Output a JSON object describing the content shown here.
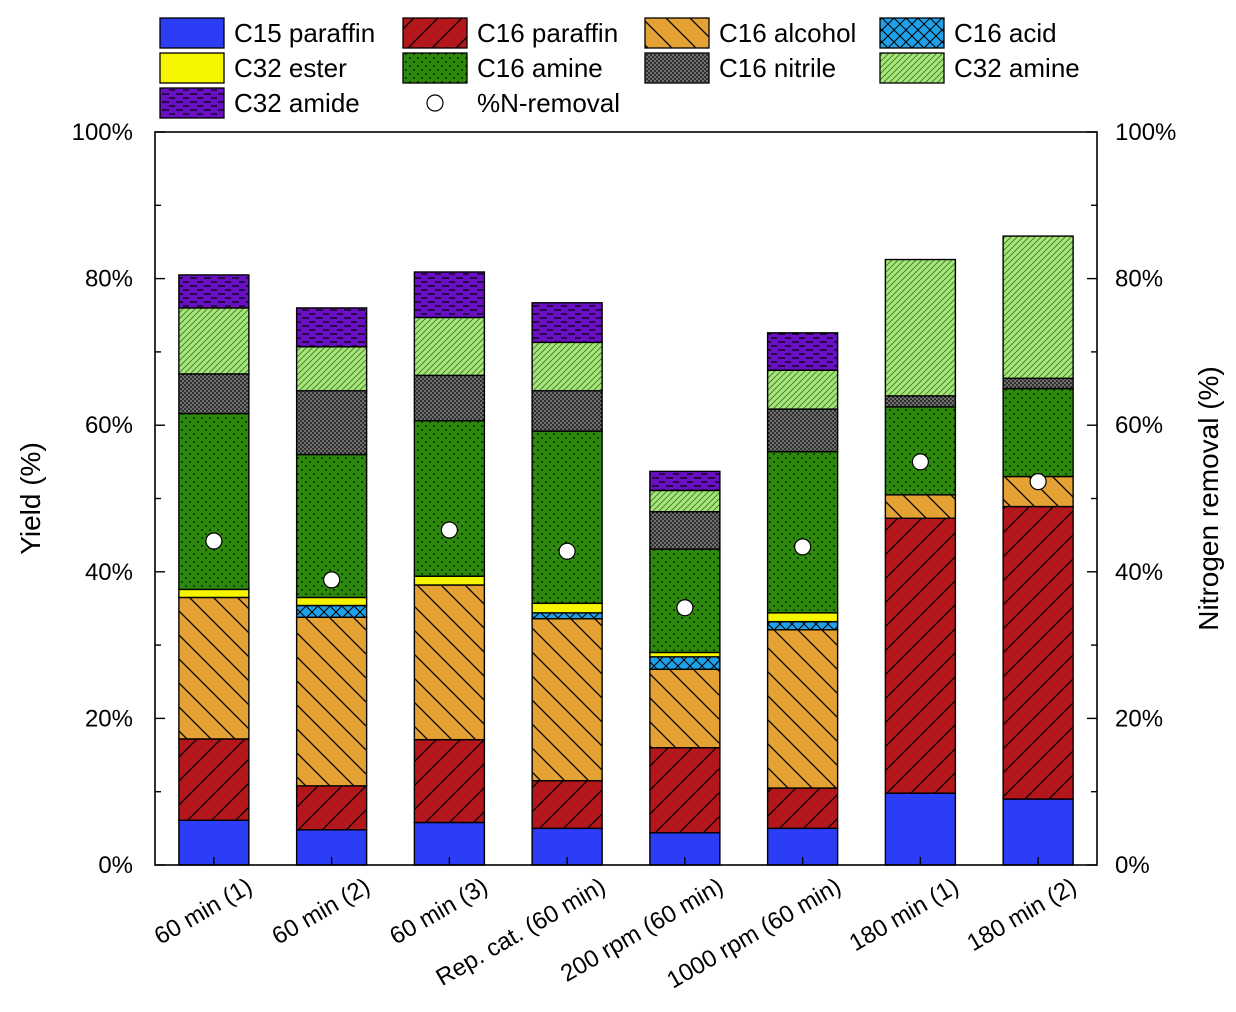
{
  "chart_data": {
    "type": "bar",
    "stacked": true,
    "categories": [
      "60 min (1)",
      "60 min (2)",
      "60 min (3)",
      "Rep. cat. (60 min)",
      "200 rpm (60 min)",
      "1000 rpm (60 min)",
      "180 min (1)",
      "180 min (2)"
    ],
    "ylabel": "Yield (%)",
    "y2label": "Nitrogen removal (%)",
    "ylim": [
      0,
      100
    ],
    "y2lim": [
      0,
      100
    ],
    "yticks": [
      "0%",
      "20%",
      "40%",
      "60%",
      "80%",
      "100%"
    ],
    "y2ticks": [
      "0%",
      "20%",
      "40%",
      "60%",
      "80%",
      "100%"
    ],
    "legend_position": "top",
    "series": [
      {
        "name": "C15 paraffin",
        "color": "#2b3df5",
        "pattern": "solid",
        "values": [
          6.1,
          4.8,
          5.8,
          5.0,
          4.4,
          5.0,
          9.8,
          9.0
        ]
      },
      {
        "name": "C16 paraffin",
        "color": "#b3171c",
        "pattern": "diag-fwd",
        "values": [
          11.1,
          6.0,
          11.3,
          6.5,
          11.6,
          5.5,
          37.5,
          39.9
        ]
      },
      {
        "name": "C16 alcohol",
        "color": "#e5a234",
        "pattern": "diag-back",
        "values": [
          19.3,
          23.0,
          21.1,
          22.1,
          10.7,
          21.6,
          3.2,
          4.1
        ]
      },
      {
        "name": "C16 acid",
        "color": "#1fa0e8",
        "pattern": "crosshatch",
        "values": [
          0.0,
          1.6,
          0.0,
          0.8,
          1.7,
          1.1,
          0.0,
          0.0
        ]
      },
      {
        "name": "C32 ester",
        "color": "#f5f500",
        "pattern": "solid",
        "values": [
          1.1,
          1.1,
          1.2,
          1.3,
          0.6,
          1.2,
          0.0,
          0.0
        ]
      },
      {
        "name": "C16 amine",
        "color": "#2e8a0c",
        "pattern": "dots",
        "values": [
          24.0,
          19.5,
          21.2,
          23.5,
          14.1,
          22.0,
          12.0,
          12.0
        ]
      },
      {
        "name": "C16 nitrile",
        "color": "#707070",
        "pattern": "dense-dots",
        "values": [
          5.4,
          8.7,
          6.2,
          5.5,
          5.1,
          5.8,
          1.5,
          1.4
        ]
      },
      {
        "name": "C32 amine",
        "color": "#a6e57c",
        "pattern": "fine-diag",
        "values": [
          9.0,
          6.0,
          7.9,
          6.6,
          2.9,
          5.3,
          18.6,
          19.4
        ]
      },
      {
        "name": "C32 amide",
        "color": "#6a0fc4",
        "pattern": "dashes",
        "values": [
          4.5,
          5.3,
          6.2,
          5.4,
          2.6,
          5.1,
          0.0,
          0.0
        ]
      }
    ],
    "n_removal": {
      "name": "%N-removal",
      "values": [
        44.2,
        38.9,
        45.7,
        42.8,
        35.1,
        43.4,
        55.0,
        52.3
      ]
    }
  }
}
